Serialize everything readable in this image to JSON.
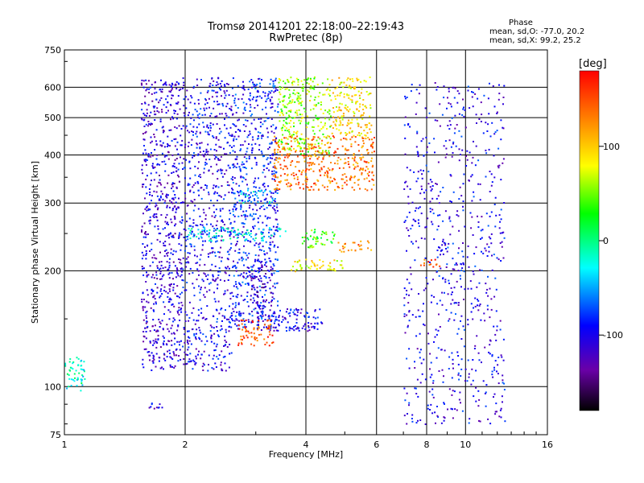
{
  "chart_data": {
    "type": "scatter",
    "title": "Tromsø 20141201 22:18:00–22:19:43",
    "subtitle": "RwPretec (8p)",
    "xlabel": "Frequency [MHz]",
    "ylabel": "Stationary phase Virtual Height [km]",
    "xscale": "log",
    "yscale": "log",
    "xlim": [
      1,
      16
    ],
    "ylim": [
      75,
      750
    ],
    "xticks": [
      1,
      2,
      4,
      6,
      8,
      10,
      16
    ],
    "yticks": [
      75,
      100,
      200,
      300,
      400,
      500,
      600,
      750
    ],
    "grid": true,
    "colorbar": {
      "label": "[deg]",
      "range": [
        -180,
        180
      ],
      "ticks": [
        100,
        0,
        -100
      ]
    },
    "stats": {
      "heading": "Phase",
      "o_line": "mean, sd,O: -77.0, 20.2",
      "x_line": "mean, sd,X:  99.2, 25.2"
    },
    "traces": [
      {
        "x": [
          1.0,
          1.12
        ],
        "y": [
          98,
          122
        ],
        "phase": -20
      },
      {
        "x": [
          1.55,
          1.95
        ],
        "y": [
          110,
          630
        ],
        "phase": -110
      },
      {
        "x": [
          1.95,
          2.6
        ],
        "y": [
          110,
          640
        ],
        "phase": -100
      },
      {
        "x": [
          2.6,
          3.4
        ],
        "y": [
          140,
          640
        ],
        "phase": -90
      },
      {
        "x": [
          3.4,
          4.6
        ],
        "y": [
          400,
          640
        ],
        "phase": 60
      },
      {
        "x": [
          4.6,
          5.8
        ],
        "y": [
          450,
          640
        ],
        "phase": 90
      },
      {
        "x": [
          2.7,
          3.3
        ],
        "y": [
          300,
          325
        ],
        "phase": -40
      },
      {
        "x": [
          3.3,
          5.9
        ],
        "y": [
          325,
          450
        ],
        "phase": 135
      },
      {
        "x": [
          3.0,
          4.4
        ],
        "y": [
          140,
          160
        ],
        "phase": -100
      },
      {
        "x": [
          3.3,
          4.1
        ],
        "y": [
          140,
          145
        ],
        "phase": -110
      },
      {
        "x": [
          2.7,
          3.3
        ],
        "y": [
          128,
          150
        ],
        "phase": 150
      },
      {
        "x": [
          3.6,
          5.0
        ],
        "y": [
          200,
          215
        ],
        "phase": 80
      },
      {
        "x": [
          3.9,
          4.7
        ],
        "y": [
          230,
          260
        ],
        "phase": 40
      },
      {
        "x": [
          4.8,
          5.8
        ],
        "y": [
          225,
          240
        ],
        "phase": 130
      },
      {
        "x": [
          2.0,
          3.6
        ],
        "y": [
          240,
          260
        ],
        "phase": -30
      },
      {
        "x": [
          2.9,
          3.3
        ],
        "y": [
          160,
          215
        ],
        "phase": -120
      },
      {
        "x": [
          1.6,
          1.75
        ],
        "y": [
          88,
          91
        ],
        "phase": -110
      },
      {
        "x": [
          7.6,
          8.7
        ],
        "y": [
          205,
          215
        ],
        "phase": 150
      },
      {
        "x": [
          8.6,
          9.1
        ],
        "y": [
          225,
          245
        ],
        "phase": -90
      },
      {
        "x": [
          7.0,
          12.5
        ],
        "y": [
          80,
          620
        ],
        "phase": -100
      }
    ]
  }
}
